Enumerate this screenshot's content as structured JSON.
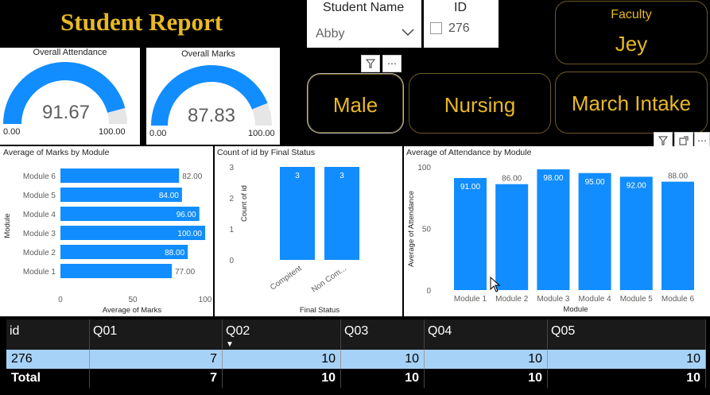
{
  "header": {
    "title": "Student Report"
  },
  "slicers": {
    "student_name": {
      "label": "Student Name",
      "value": "Abby"
    },
    "id": {
      "label": "ID",
      "value": "276"
    }
  },
  "faculty": {
    "label": "Faculty",
    "value": "Jey"
  },
  "gauges": {
    "attendance": {
      "title": "Overall Attendance",
      "value": "91.67",
      "min": "0.00",
      "max": "100.00",
      "fraction": 0.9167
    },
    "marks": {
      "title": "Overall Marks",
      "value": "87.83",
      "min": "0.00",
      "max": "100.00",
      "fraction": 0.8783
    }
  },
  "buttons": {
    "gender": "Male",
    "course": "Nursing",
    "intake": "March Intake"
  },
  "colors": {
    "accent": "#e8b923",
    "bar": "#118dff"
  },
  "charts": {
    "marks_by_module": {
      "title": "Average of Marks by Module",
      "xlabel": "Average of Marks",
      "ylabel": "Module",
      "xticks": [
        "0",
        "50",
        "100"
      ]
    },
    "final_status": {
      "title": "Count of id by Final Status",
      "xlabel": "Final Status",
      "ylabel": "Count of id",
      "yticks": [
        "0",
        "1",
        "2",
        "3"
      ]
    },
    "attendance_by_module": {
      "title": "Average of Attendance by Module",
      "xlabel": "Module",
      "ylabel": "Average of Attendance",
      "yticks": [
        "0",
        "50",
        "100"
      ]
    }
  },
  "chart_data": [
    {
      "type": "bar",
      "orientation": "horizontal",
      "title": "Average of Marks by Module",
      "categories": [
        "Module 6",
        "Module 5",
        "Module 4",
        "Module 3",
        "Module 2",
        "Module 1"
      ],
      "values": [
        82,
        84,
        96,
        100,
        88,
        77
      ],
      "labels": [
        "82.00",
        "84.00",
        "96.00",
        "100.00",
        "88.00",
        "77.00"
      ],
      "xlabel": "Average of Marks",
      "ylabel": "Module",
      "xlim": [
        0,
        100
      ]
    },
    {
      "type": "bar",
      "title": "Count of id by Final Status",
      "categories": [
        "Compitent",
        "Non Com..."
      ],
      "values": [
        3,
        3
      ],
      "labels": [
        "3",
        "3"
      ],
      "xlabel": "Final Status",
      "ylabel": "Count of id",
      "ylim": [
        0,
        3
      ]
    },
    {
      "type": "bar",
      "title": "Average of Attendance by Module",
      "categories": [
        "Module 1",
        "Module 2",
        "Module 3",
        "Module 4",
        "Module 5",
        "Module 6"
      ],
      "values": [
        91,
        86,
        98,
        95,
        92,
        88
      ],
      "labels": [
        "91.00",
        "86.00",
        "98.00",
        "95.00",
        "92.00",
        "88.00"
      ],
      "xlabel": "Module",
      "ylabel": "Average of Attendance",
      "ylim": [
        0,
        100
      ]
    }
  ],
  "matrix": {
    "headers": [
      "id",
      "Q01",
      "Q02",
      "Q03",
      "Q04",
      "Q05"
    ],
    "row": [
      "276",
      "7",
      "10",
      "10",
      "10",
      "10"
    ],
    "total": [
      "Total",
      "7",
      "10",
      "10",
      "10",
      "10"
    ]
  }
}
